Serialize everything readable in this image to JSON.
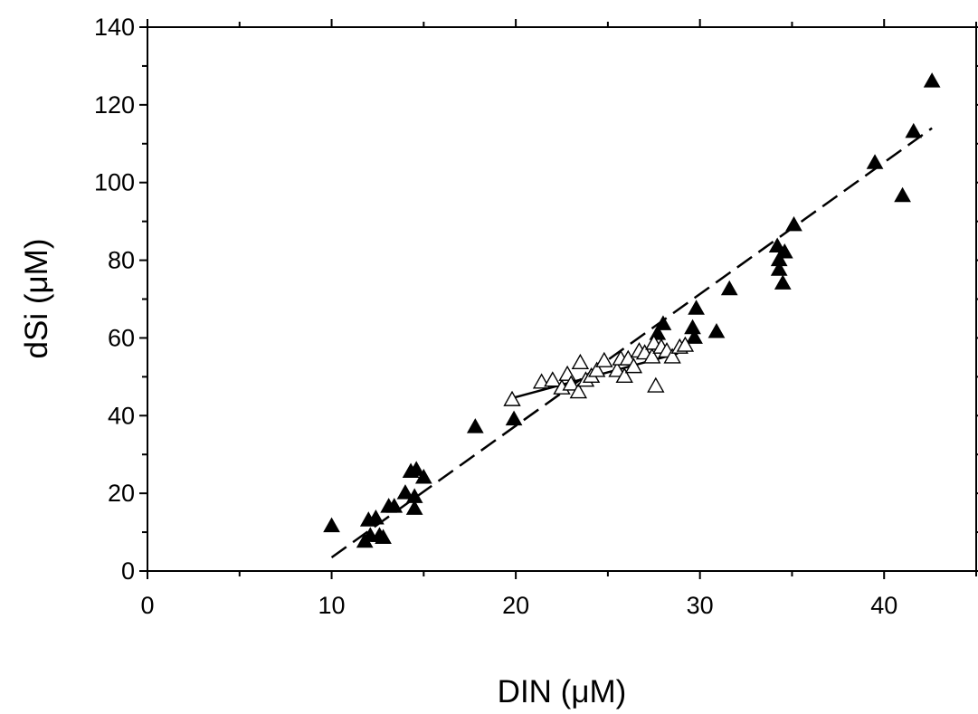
{
  "chart_data": {
    "type": "scatter",
    "xlabel": "DIN (μM)",
    "ylabel": "dSi (μM)",
    "xlim": [
      0,
      45
    ],
    "ylim": [
      0,
      140
    ],
    "x_ticks": [
      0,
      10,
      20,
      30,
      40
    ],
    "y_ticks": [
      0,
      20,
      40,
      60,
      80,
      100,
      120,
      140
    ],
    "grid": false,
    "series": [
      {
        "marker": "filled-triangle",
        "color": "#000000",
        "points": [
          [
            10.0,
            11.5
          ],
          [
            11.8,
            7.5
          ],
          [
            12.0,
            13.0
          ],
          [
            12.1,
            9.0
          ],
          [
            12.4,
            13.5
          ],
          [
            12.6,
            9.0
          ],
          [
            12.8,
            8.5
          ],
          [
            13.1,
            16.5
          ],
          [
            13.4,
            16.5
          ],
          [
            14.0,
            20.0
          ],
          [
            14.3,
            25.5
          ],
          [
            14.5,
            16.0
          ],
          [
            14.5,
            19.0
          ],
          [
            14.6,
            26.0
          ],
          [
            15.0,
            24.0
          ],
          [
            17.8,
            37.0
          ],
          [
            19.9,
            39.0
          ],
          [
            27.7,
            61.0
          ],
          [
            28.0,
            63.5
          ],
          [
            29.6,
            62.5
          ],
          [
            29.7,
            60.0
          ],
          [
            29.8,
            67.5
          ],
          [
            30.9,
            61.5
          ],
          [
            31.6,
            72.5
          ],
          [
            34.2,
            83.5
          ],
          [
            34.3,
            80.0
          ],
          [
            34.3,
            77.5
          ],
          [
            34.5,
            74.0
          ],
          [
            34.6,
            82.0
          ],
          [
            35.1,
            89.0
          ],
          [
            39.5,
            105.0
          ],
          [
            41.0,
            96.5
          ],
          [
            41.6,
            113.0
          ],
          [
            42.6,
            126.0
          ]
        ]
      },
      {
        "marker": "open-triangle",
        "color": "#000000",
        "points": [
          [
            19.8,
            44.0
          ],
          [
            21.4,
            48.5
          ],
          [
            22.0,
            49.0
          ],
          [
            22.5,
            47.0
          ],
          [
            22.8,
            50.5
          ],
          [
            23.0,
            48.0
          ],
          [
            23.4,
            46.0
          ],
          [
            23.5,
            53.5
          ],
          [
            23.8,
            49.0
          ],
          [
            24.1,
            50.0
          ],
          [
            24.4,
            51.5
          ],
          [
            24.8,
            54.0
          ],
          [
            25.5,
            51.5
          ],
          [
            25.7,
            54.5
          ],
          [
            25.9,
            50.0
          ],
          [
            26.1,
            54.5
          ],
          [
            26.4,
            52.5
          ],
          [
            26.7,
            56.5
          ],
          [
            27.0,
            56.0
          ],
          [
            27.4,
            55.0
          ],
          [
            27.5,
            58.5
          ],
          [
            27.6,
            47.5
          ],
          [
            27.9,
            57.5
          ],
          [
            28.2,
            56.5
          ],
          [
            28.5,
            55.0
          ],
          [
            28.9,
            57.5
          ],
          [
            29.2,
            58.0
          ]
        ]
      }
    ],
    "fit_lines": [
      {
        "style": "dashed",
        "points": [
          [
            10.0,
            3.5
          ],
          [
            42.6,
            114.0
          ]
        ]
      },
      {
        "style": "solid",
        "points": [
          [
            19.8,
            44.5
          ],
          [
            28.8,
            56.0
          ]
        ]
      }
    ]
  }
}
